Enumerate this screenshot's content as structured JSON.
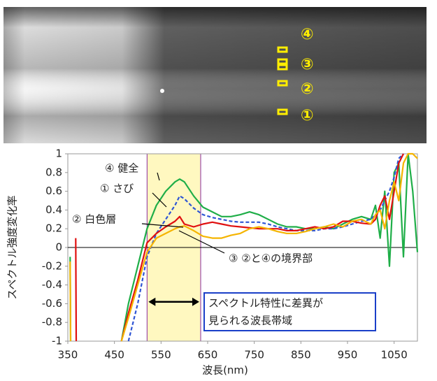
{
  "photo": {
    "labels": [
      "④",
      "③",
      "②",
      "①"
    ]
  },
  "chart_data": {
    "type": "line",
    "x_label": "波長(nm)",
    "y_label": "スペクトル強度変化率",
    "x": [
      355,
      356,
      367,
      368,
      369,
      465,
      480,
      500,
      520,
      540,
      560,
      580,
      590,
      600,
      620,
      640,
      660,
      680,
      700,
      720,
      740,
      760,
      780,
      800,
      820,
      840,
      860,
      880,
      900,
      920,
      940,
      960,
      980,
      1000,
      1010,
      1020,
      1030,
      1040,
      1050,
      1060,
      1070,
      1080,
      1090,
      1100
    ],
    "series": [
      {
        "name": "④ 健全",
        "color": "#1fae48",
        "values": [
          -0.1,
          -1,
          null,
          null,
          null,
          -1,
          -0.6,
          -0.2,
          0.2,
          0.45,
          0.6,
          0.7,
          0.73,
          0.7,
          0.55,
          0.43,
          0.38,
          0.33,
          0.33,
          0.35,
          0.38,
          0.35,
          0.3,
          0.25,
          0.22,
          0.22,
          0.2,
          0.2,
          0.22,
          0.2,
          0.25,
          0.3,
          0.33,
          0.3,
          0.45,
          0.1,
          0.6,
          -0.2,
          0.8,
          0.9,
          -0.1,
          1.0,
          0.6,
          -0.05
        ]
      },
      {
        "name": "① さび",
        "color": "#2f55d4",
        "dashed": true,
        "values": [
          null,
          null,
          null,
          null,
          null,
          null,
          -1,
          -0.6,
          -0.1,
          0.15,
          0.3,
          0.45,
          0.55,
          0.52,
          0.42,
          0.35,
          0.32,
          0.3,
          0.28,
          0.27,
          0.27,
          0.27,
          0.25,
          0.22,
          0.2,
          0.18,
          0.18,
          0.18,
          0.2,
          0.2,
          0.22,
          0.25,
          0.28,
          0.3,
          0.35,
          0.4,
          0.5,
          0.6,
          0.75,
          0.95,
          1.0,
          null,
          null,
          null
        ]
      },
      {
        "name": "② 白色層",
        "color": "#e01010",
        "values": [
          null,
          null,
          0.1,
          -1,
          null,
          -1,
          -0.7,
          -0.35,
          0.05,
          0.15,
          0.22,
          0.28,
          0.33,
          0.25,
          0.22,
          0.25,
          0.27,
          0.25,
          0.23,
          0.22,
          0.21,
          0.2,
          0.2,
          0.2,
          0.18,
          0.18,
          0.2,
          0.22,
          0.2,
          0.22,
          0.28,
          0.28,
          0.26,
          0.25,
          0.3,
          0.45,
          0.55,
          0.3,
          0.6,
          0.9,
          1.0,
          null,
          null,
          null
        ]
      },
      {
        "name": "③ ②と④の境界部",
        "color": "#f5b400",
        "values": [
          -0.15,
          -1,
          null,
          null,
          null,
          -1,
          -0.75,
          -0.4,
          -0.05,
          0.1,
          0.15,
          0.2,
          0.22,
          0.23,
          0.18,
          0.12,
          0.1,
          0.1,
          0.13,
          0.15,
          0.2,
          0.22,
          0.2,
          0.17,
          0.15,
          0.15,
          0.17,
          0.2,
          0.22,
          0.25,
          0.22,
          0.28,
          0.3,
          0.25,
          0.35,
          0.4,
          0.2,
          0.5,
          0.7,
          0.5,
          0.9,
          1.0,
          1.0,
          0.95
        ]
      }
    ],
    "highlight": [
      520,
      635
    ],
    "highlight_note": [
      "スペクトル特性に差異が",
      "見られる波長帯域"
    ],
    "xlim": [
      350,
      1100
    ],
    "xticks": [
      350,
      450,
      550,
      650,
      750,
      850,
      950,
      1050
    ],
    "ylim": [
      -1,
      1
    ],
    "yticks": [
      1,
      0.8,
      0.6,
      0.4,
      0.2,
      0,
      -0.2,
      -0.4,
      -0.6,
      -0.8,
      -1
    ]
  }
}
